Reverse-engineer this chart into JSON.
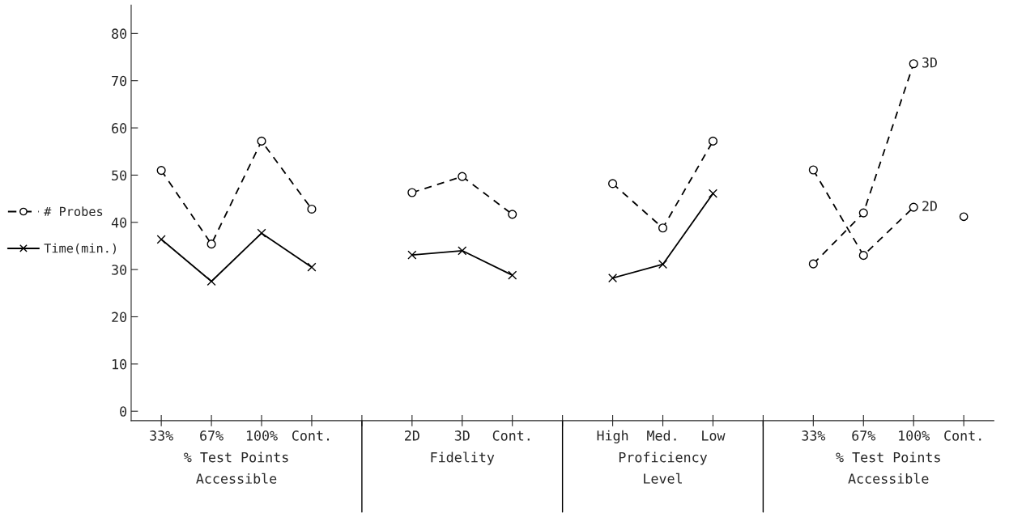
{
  "chart_data": {
    "type": "line",
    "categories": [
      "33%",
      "67%",
      "100%",
      "Cont.",
      null,
      "2D",
      "3D",
      "Cont.",
      null,
      "High",
      "Med.",
      "Low",
      null,
      "33%",
      "67%",
      "100%",
      "Cont."
    ],
    "series": [
      {
        "name": "# Probes",
        "color": "#000000",
        "marker": "circle",
        "line_style": "dashed",
        "values": [
          51.0,
          35.4,
          57.2,
          42.8,
          null,
          46.3,
          49.7,
          41.7,
          null,
          48.2,
          38.8,
          57.2,
          null,
          null,
          null,
          null,
          null
        ]
      },
      {
        "name": "Time(min.)",
        "color": "#000000",
        "marker": "cross",
        "line_style": "solid",
        "values": [
          36.4,
          27.5,
          37.7,
          30.5,
          null,
          33.1,
          34.0,
          28.8,
          null,
          28.2,
          31.1,
          46.1,
          null,
          null,
          null,
          null,
          null
        ]
      },
      {
        "name": "3D",
        "color": "#000000",
        "marker": "circle",
        "line_style": "dashed",
        "values": [
          null,
          null,
          null,
          null,
          null,
          null,
          null,
          null,
          null,
          null,
          null,
          null,
          null,
          31.2,
          42.0,
          73.6,
          null
        ]
      },
      {
        "name": "2D",
        "color": "#000000",
        "marker": "circle",
        "line_style": "dashed",
        "values": [
          null,
          null,
          null,
          null,
          null,
          null,
          null,
          null,
          null,
          null,
          null,
          null,
          null,
          51.1,
          33.0,
          43.2,
          null
        ]
      },
      {
        "type": "scatter",
        "color": "#000000",
        "marker": "circle",
        "values": [
          null,
          null,
          null,
          null,
          null,
          null,
          null,
          null,
          null,
          null,
          null,
          null,
          null,
          null,
          null,
          null,
          41.2
        ]
      }
    ],
    "annotations": [
      "% Test Points\nAccessible",
      "Fidelity",
      "Proficiency\nLevel",
      "% Test Points\nAccessible"
    ],
    "ylim": [
      -2,
      86
    ],
    "yticks": [
      0,
      10,
      20,
      30,
      40,
      50,
      60,
      70,
      80
    ],
    "grid": false,
    "legend": "left"
  }
}
